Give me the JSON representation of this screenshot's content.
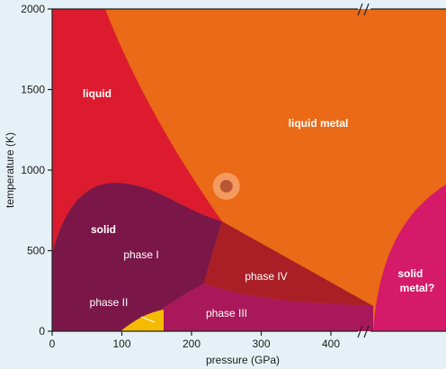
{
  "axes": {
    "x": {
      "label": "pressure (GPa)",
      "ticks": [
        "0",
        "100",
        "200",
        "300",
        "400"
      ],
      "tick_values": [
        0,
        100,
        200,
        300,
        400
      ],
      "range": [
        0,
        510
      ],
      "break_marker": "//"
    },
    "y": {
      "label": "temperature (K)",
      "ticks": [
        "0",
        "500",
        "1000",
        "1500",
        "2000"
      ],
      "tick_values": [
        0,
        500,
        1000,
        1500,
        2000
      ],
      "range": [
        0,
        2000
      ]
    }
  },
  "regions": {
    "liquid": {
      "label": "liquid",
      "color": "#dc1b2e"
    },
    "liquid_metal": {
      "label": "liquid metal",
      "color": "#ea6a17"
    },
    "solid": {
      "label": "solid",
      "color": "#7b1748"
    },
    "phase_1": {
      "label": "phase I",
      "color": "#7b1748"
    },
    "phase_2": {
      "label": "phase II",
      "color": "#f5bb00"
    },
    "phase_3": {
      "label": "phase III",
      "color": "#a8185a"
    },
    "phase_4": {
      "label": "phase IV",
      "color": "#aa1f26"
    },
    "solid_metal": {
      "label": "solid\nmetal?",
      "line1": "solid",
      "line2": "metal?",
      "color": "#d61a6a"
    }
  },
  "marker": {
    "pressure": 250,
    "temperature": 900,
    "color": "#f6a26c"
  },
  "colors": {
    "background": "#e6f1f7",
    "axis": "#222222"
  }
}
